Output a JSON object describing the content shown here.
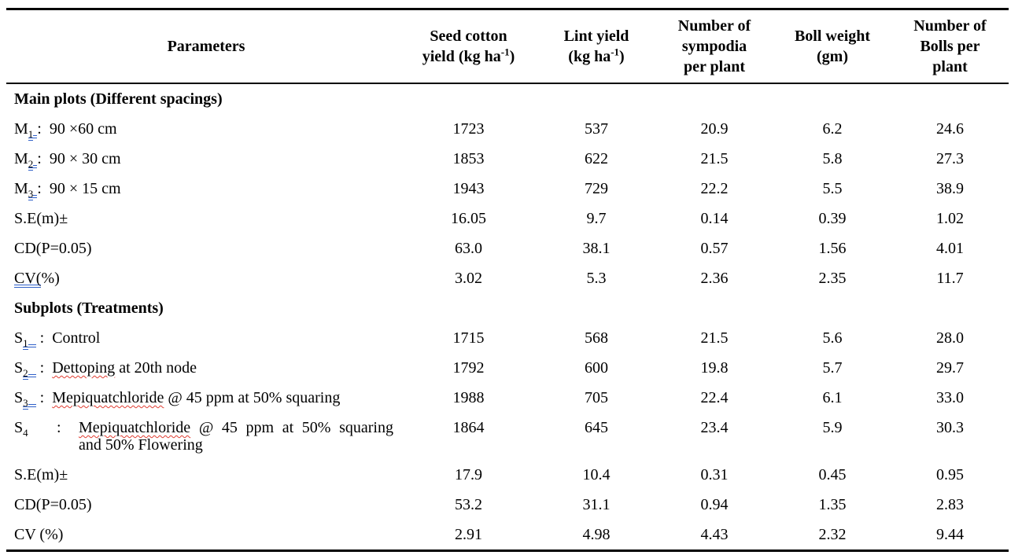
{
  "colors": {
    "grammar_underline_blue": "#2e5fc8",
    "spellcheck_squiggle_red": "#e03c31",
    "table_border": "#000000",
    "background": "#ffffff"
  },
  "table": {
    "headers": [
      {
        "segs": [
          {
            "t": "Parameters"
          }
        ]
      },
      {
        "segs": [
          {
            "t": "Seed cotton\nyield (kg ha"
          },
          {
            "t": "-1",
            "sup": true
          },
          {
            "t": ")"
          }
        ]
      },
      {
        "segs": [
          {
            "t": "Lint yield\n(kg ha"
          },
          {
            "t": "-1",
            "sup": true
          },
          {
            "t": ")"
          }
        ]
      },
      {
        "segs": [
          {
            "t": "Number of\nsympodia\nper plant"
          }
        ]
      },
      {
        "segs": [
          {
            "t": "Boll weight\n(gm)"
          }
        ]
      },
      {
        "segs": [
          {
            "t": "Number of\nBolls per\nplant"
          }
        ]
      }
    ],
    "rows": [
      {
        "type": "section",
        "segs": [
          {
            "t": "Main plots (Different spacings)"
          }
        ],
        "values": [
          "",
          "",
          "",
          "",
          ""
        ]
      },
      {
        "type": "item",
        "segs": [
          {
            "t": "M"
          },
          {
            "t": "1",
            "sub": true,
            "u": "blue"
          },
          {
            "t": " ",
            "u": "blue"
          },
          {
            "t": ":  "
          },
          {
            "t": "90 ×60 cm"
          }
        ],
        "values": [
          "1723",
          "537",
          "20.9",
          "6.2",
          "24.6"
        ]
      },
      {
        "type": "item",
        "segs": [
          {
            "t": "M"
          },
          {
            "t": "2",
            "sub": true,
            "u": "blue"
          },
          {
            "t": " ",
            "u": "blue"
          },
          {
            "t": ":  "
          },
          {
            "t": "90 × 30 cm"
          }
        ],
        "values": [
          "1853",
          "622",
          "21.5",
          "5.8",
          "27.3"
        ]
      },
      {
        "type": "item",
        "segs": [
          {
            "t": "M"
          },
          {
            "t": "3",
            "sub": true,
            "u": "blue"
          },
          {
            "t": " ",
            "u": "blue"
          },
          {
            "t": ":  "
          },
          {
            "t": "90 × 15 cm"
          }
        ],
        "values": [
          "1943",
          "729",
          "22.2",
          "5.5",
          "38.9"
        ]
      },
      {
        "type": "stat",
        "segs": [
          {
            "t": "S.E(m)±"
          }
        ],
        "values": [
          "16.05",
          "9.7",
          "0.14",
          "0.39",
          "1.02"
        ]
      },
      {
        "type": "stat",
        "segs": [
          {
            "t": "CD(P=0.05)"
          }
        ],
        "values": [
          "63.0",
          "38.1",
          "0.57",
          "1.56",
          "4.01"
        ]
      },
      {
        "type": "stat",
        "segs": [
          {
            "t": "CV(",
            "u": "blue"
          },
          {
            "t": "%)"
          }
        ],
        "values": [
          "3.02",
          "5.3",
          "2.36",
          "2.35",
          "11.7"
        ]
      },
      {
        "type": "section",
        "segs": [
          {
            "t": "Subplots (Treatments)"
          }
        ],
        "values": [
          "",
          "",
          "",
          "",
          ""
        ]
      },
      {
        "type": "item",
        "segs": [
          {
            "t": "S"
          },
          {
            "t": "1",
            "sub": true,
            "u": "blue"
          },
          {
            "t": "  ",
            "u": "blue"
          },
          {
            "t": " :  "
          },
          {
            "t": "Control"
          }
        ],
        "values": [
          "1715",
          "568",
          "21.5",
          "5.6",
          "28.0"
        ]
      },
      {
        "type": "item",
        "segs": [
          {
            "t": "S"
          },
          {
            "t": "2",
            "sub": true,
            "u": "blue"
          },
          {
            "t": "  ",
            "u": "blue"
          },
          {
            "t": " :  "
          },
          {
            "t": "Dettoping",
            "u2": "red"
          },
          {
            "t": " at 20th node"
          }
        ],
        "values": [
          "1792",
          "600",
          "19.8",
          "5.7",
          "29.7"
        ]
      },
      {
        "type": "item",
        "segs": [
          {
            "t": "S"
          },
          {
            "t": "3",
            "sub": true,
            "u": "blue"
          },
          {
            "t": "  ",
            "u": "blue"
          },
          {
            "t": " :  "
          },
          {
            "t": "Mepiquatchloride",
            "u2": "red"
          },
          {
            "t": " @ 45 ppm at 50% squaring"
          }
        ],
        "values": [
          "1988",
          "705",
          "22.4",
          "6.1",
          "33.0"
        ]
      },
      {
        "type": "item_wrap",
        "pfx": [
          {
            "t": "S"
          },
          {
            "t": "4",
            "sub": true
          }
        ],
        "colon": ":",
        "line1": [
          {
            "t": "Mepiquatchloride",
            "u": "red"
          },
          {
            "t": " @ 45 ppm at 50% squaring"
          }
        ],
        "line2": "and 50% Flowering",
        "values": [
          "1864",
          "645",
          "23.4",
          "5.9",
          "30.3"
        ]
      },
      {
        "type": "stat",
        "segs": [
          {
            "t": "S.E(m)±"
          }
        ],
        "values": [
          "17.9",
          "10.4",
          "0.31",
          "0.45",
          "0.95"
        ]
      },
      {
        "type": "stat",
        "segs": [
          {
            "t": "CD(P=0.05)"
          }
        ],
        "values": [
          "53.2",
          "31.1",
          "0.94",
          "1.35",
          "2.83"
        ]
      },
      {
        "type": "stat",
        "segs": [
          {
            "t": "CV (%)"
          }
        ],
        "values": [
          "2.91",
          "4.98",
          "4.43",
          "2.32",
          "9.44"
        ]
      }
    ]
  }
}
